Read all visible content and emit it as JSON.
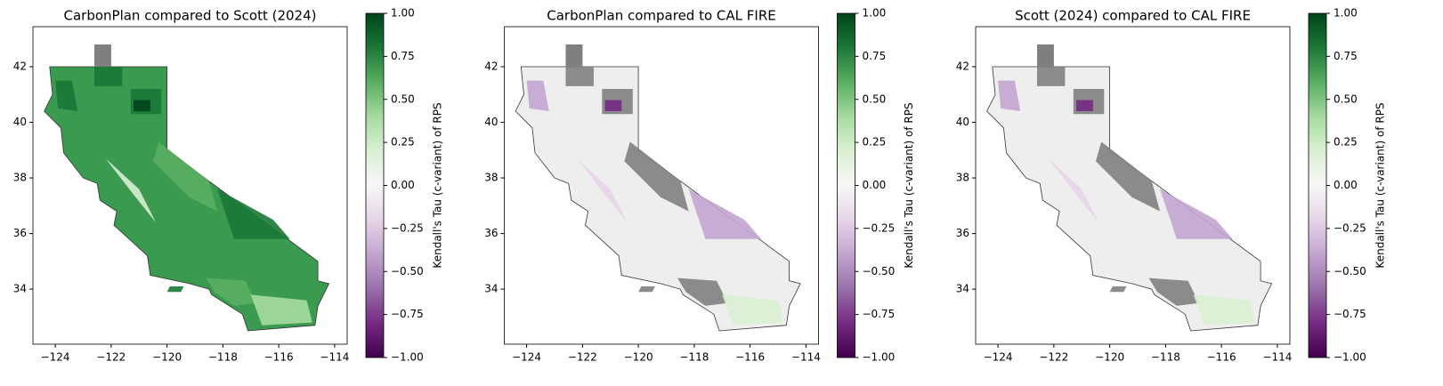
{
  "chart_data": [
    {
      "type": "map",
      "title": "CarbonPlan compared to Scott (2024)",
      "map_color": "#3a9a50",
      "xlim": [
        -124.8,
        -113.55
      ],
      "ylim": [
        32.02,
        43.44
      ],
      "xticks": [
        {
          "value": -124,
          "label": "−124"
        },
        {
          "value": -122,
          "label": "−122"
        },
        {
          "value": -120,
          "label": "−120"
        },
        {
          "value": -118,
          "label": "−118"
        },
        {
          "value": -116,
          "label": "−116"
        },
        {
          "value": -114,
          "label": "−114"
        }
      ],
      "yticks": [
        34,
        36,
        38,
        40,
        42
      ],
      "colorbar": {
        "label": "Kendall's Tau (c-variant) of RPS",
        "lim": [
          -1,
          1
        ],
        "colors": [
          "#40004b",
          "#762a83",
          "#9970ab",
          "#c2a5cf",
          "#e7d4e8",
          "#f7f7f7",
          "#d9f0d3",
          "#a6dba0",
          "#5aae61",
          "#1b7837",
          "#00441b"
        ],
        "ticks": [
          {
            "value": -1,
            "label": "−1.00"
          },
          {
            "value": -0.75,
            "label": "−0.75"
          },
          {
            "value": -0.5,
            "label": "−0.50"
          },
          {
            "value": -0.25,
            "label": "−0.25"
          },
          {
            "value": 0,
            "label": "0.00"
          },
          {
            "value": 0.25,
            "label": "0.25"
          },
          {
            "value": 0.5,
            "label": "0.50"
          },
          {
            "value": 0.75,
            "label": "0.75"
          },
          {
            "value": 1,
            "label": "1.00"
          }
        ]
      }
    },
    {
      "type": "map",
      "title": "CarbonPlan compared to CAL FIRE",
      "map_color": "#eeeeee",
      "xlim": [
        -124.8,
        -113.55
      ],
      "ylim": [
        32.02,
        43.44
      ],
      "xticks": [
        {
          "value": -124,
          "label": "−124"
        },
        {
          "value": -122,
          "label": "−122"
        },
        {
          "value": -120,
          "label": "−120"
        },
        {
          "value": -118,
          "label": "−118"
        },
        {
          "value": -116,
          "label": "−116"
        },
        {
          "value": -114,
          "label": "−114"
        }
      ],
      "yticks": [
        34,
        36,
        38,
        40,
        42
      ],
      "colorbar": {
        "label": "Kendall's Tau (c-variant) of RPS",
        "lim": [
          -1,
          1
        ],
        "colors": [
          "#40004b",
          "#762a83",
          "#9970ab",
          "#c2a5cf",
          "#e7d4e8",
          "#f7f7f7",
          "#d9f0d3",
          "#a6dba0",
          "#5aae61",
          "#1b7837",
          "#00441b"
        ],
        "ticks": [
          {
            "value": -1,
            "label": "−1.00"
          },
          {
            "value": -0.75,
            "label": "−0.75"
          },
          {
            "value": -0.5,
            "label": "−0.50"
          },
          {
            "value": -0.25,
            "label": "−0.25"
          },
          {
            "value": 0,
            "label": "0.00"
          },
          {
            "value": 0.25,
            "label": "0.25"
          },
          {
            "value": 0.5,
            "label": "0.50"
          },
          {
            "value": 0.75,
            "label": "0.75"
          },
          {
            "value": 1,
            "label": "1.00"
          }
        ]
      }
    },
    {
      "type": "map",
      "title": "Scott (2024) compared to CAL FIRE",
      "map_color": "#eeeeee",
      "xlim": [
        -124.8,
        -113.55
      ],
      "ylim": [
        32.02,
        43.44
      ],
      "xticks": [
        {
          "value": -124,
          "label": "−124"
        },
        {
          "value": -122,
          "label": "−122"
        },
        {
          "value": -120,
          "label": "−120"
        },
        {
          "value": -118,
          "label": "−118"
        },
        {
          "value": -116,
          "label": "−116"
        },
        {
          "value": -114,
          "label": "−114"
        }
      ],
      "yticks": [
        34,
        36,
        38,
        40,
        42
      ],
      "colorbar": {
        "label": "Kendall's Tau (c-variant) of RPS",
        "lim": [
          -1,
          1
        ],
        "colors": [
          "#40004b",
          "#762a83",
          "#9970ab",
          "#c2a5cf",
          "#e7d4e8",
          "#f7f7f7",
          "#d9f0d3",
          "#a6dba0",
          "#5aae61",
          "#1b7837",
          "#00441b"
        ],
        "ticks": [
          {
            "value": -1,
            "label": "−1.00"
          },
          {
            "value": -0.75,
            "label": "−0.75"
          },
          {
            "value": -0.5,
            "label": "−0.50"
          },
          {
            "value": -0.25,
            "label": "−0.25"
          },
          {
            "value": 0,
            "label": "0.00"
          },
          {
            "value": 0.25,
            "label": "0.25"
          },
          {
            "value": 0.5,
            "label": "0.50"
          },
          {
            "value": 0.75,
            "label": "0.75"
          },
          {
            "value": 1,
            "label": "1.00"
          }
        ]
      }
    }
  ]
}
